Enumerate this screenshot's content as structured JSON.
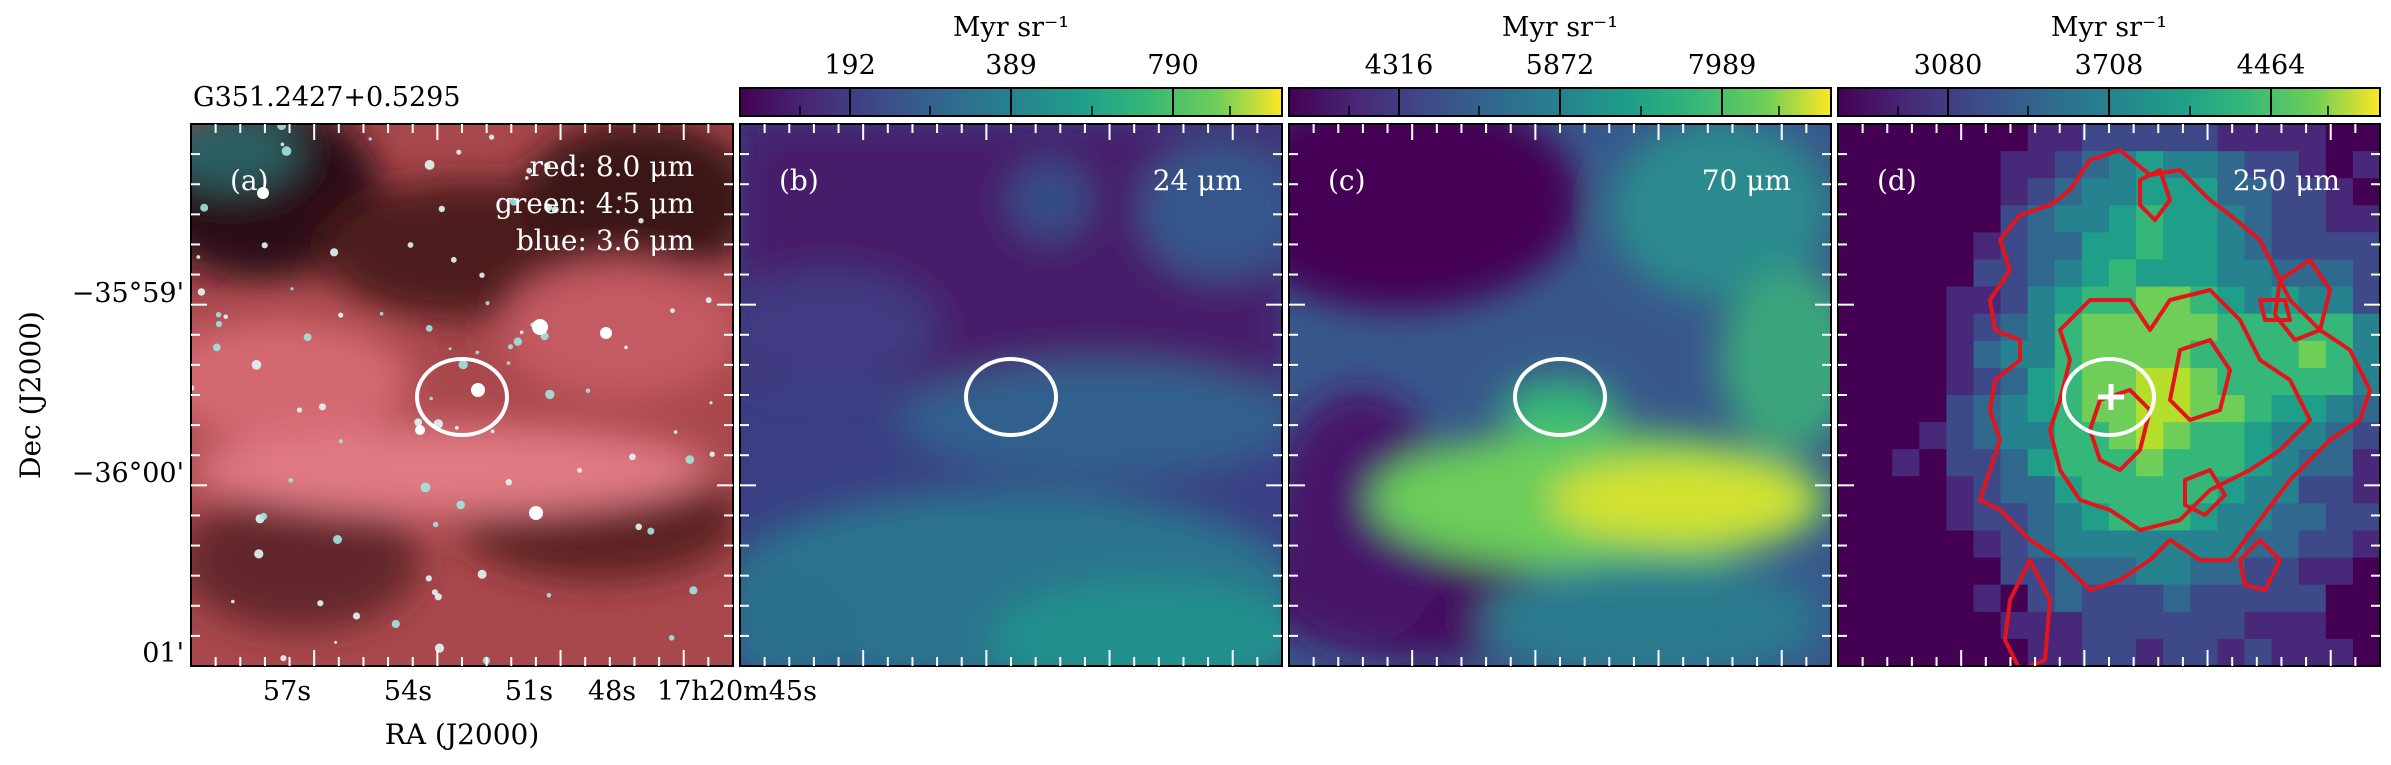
{
  "source_name": "G351.2427+0.5295",
  "axes": {
    "xlabel": "RA (J2000)",
    "ylabel": "Dec (J2000)",
    "ra_ticks": [
      "57s",
      "54s",
      "51s",
      "48s",
      "17h20m45s"
    ],
    "dec_ticks": [
      "−35°59'",
      "−36°00'",
      "01'"
    ]
  },
  "panels": [
    {
      "id": "a",
      "letter": "(a)",
      "band": "",
      "legend": [
        "red: 8.0 μm",
        "green: 4.5 μm",
        "blue: 3.6 μm"
      ]
    },
    {
      "id": "b",
      "letter": "(b)",
      "band": "24 μm",
      "colorbar": {
        "unit": "Myr sr⁻¹",
        "ticks": [
          "192",
          "389",
          "790"
        ]
      }
    },
    {
      "id": "c",
      "letter": "(c)",
      "band": "70 μm",
      "colorbar": {
        "unit": "Myr sr⁻¹",
        "ticks": [
          "4316",
          "5872",
          "7989"
        ]
      }
    },
    {
      "id": "d",
      "letter": "(d)",
      "band": "250 μm",
      "colorbar": {
        "unit": "Myr sr⁻¹",
        "ticks": [
          "3080",
          "3708",
          "4464"
        ]
      }
    }
  ],
  "colors": {
    "viridis_dark": "#440154",
    "viridis_mid": "#21918c",
    "viridis_light": "#fde725",
    "contour": "#e3141b",
    "ellipse": "#ffffff"
  }
}
